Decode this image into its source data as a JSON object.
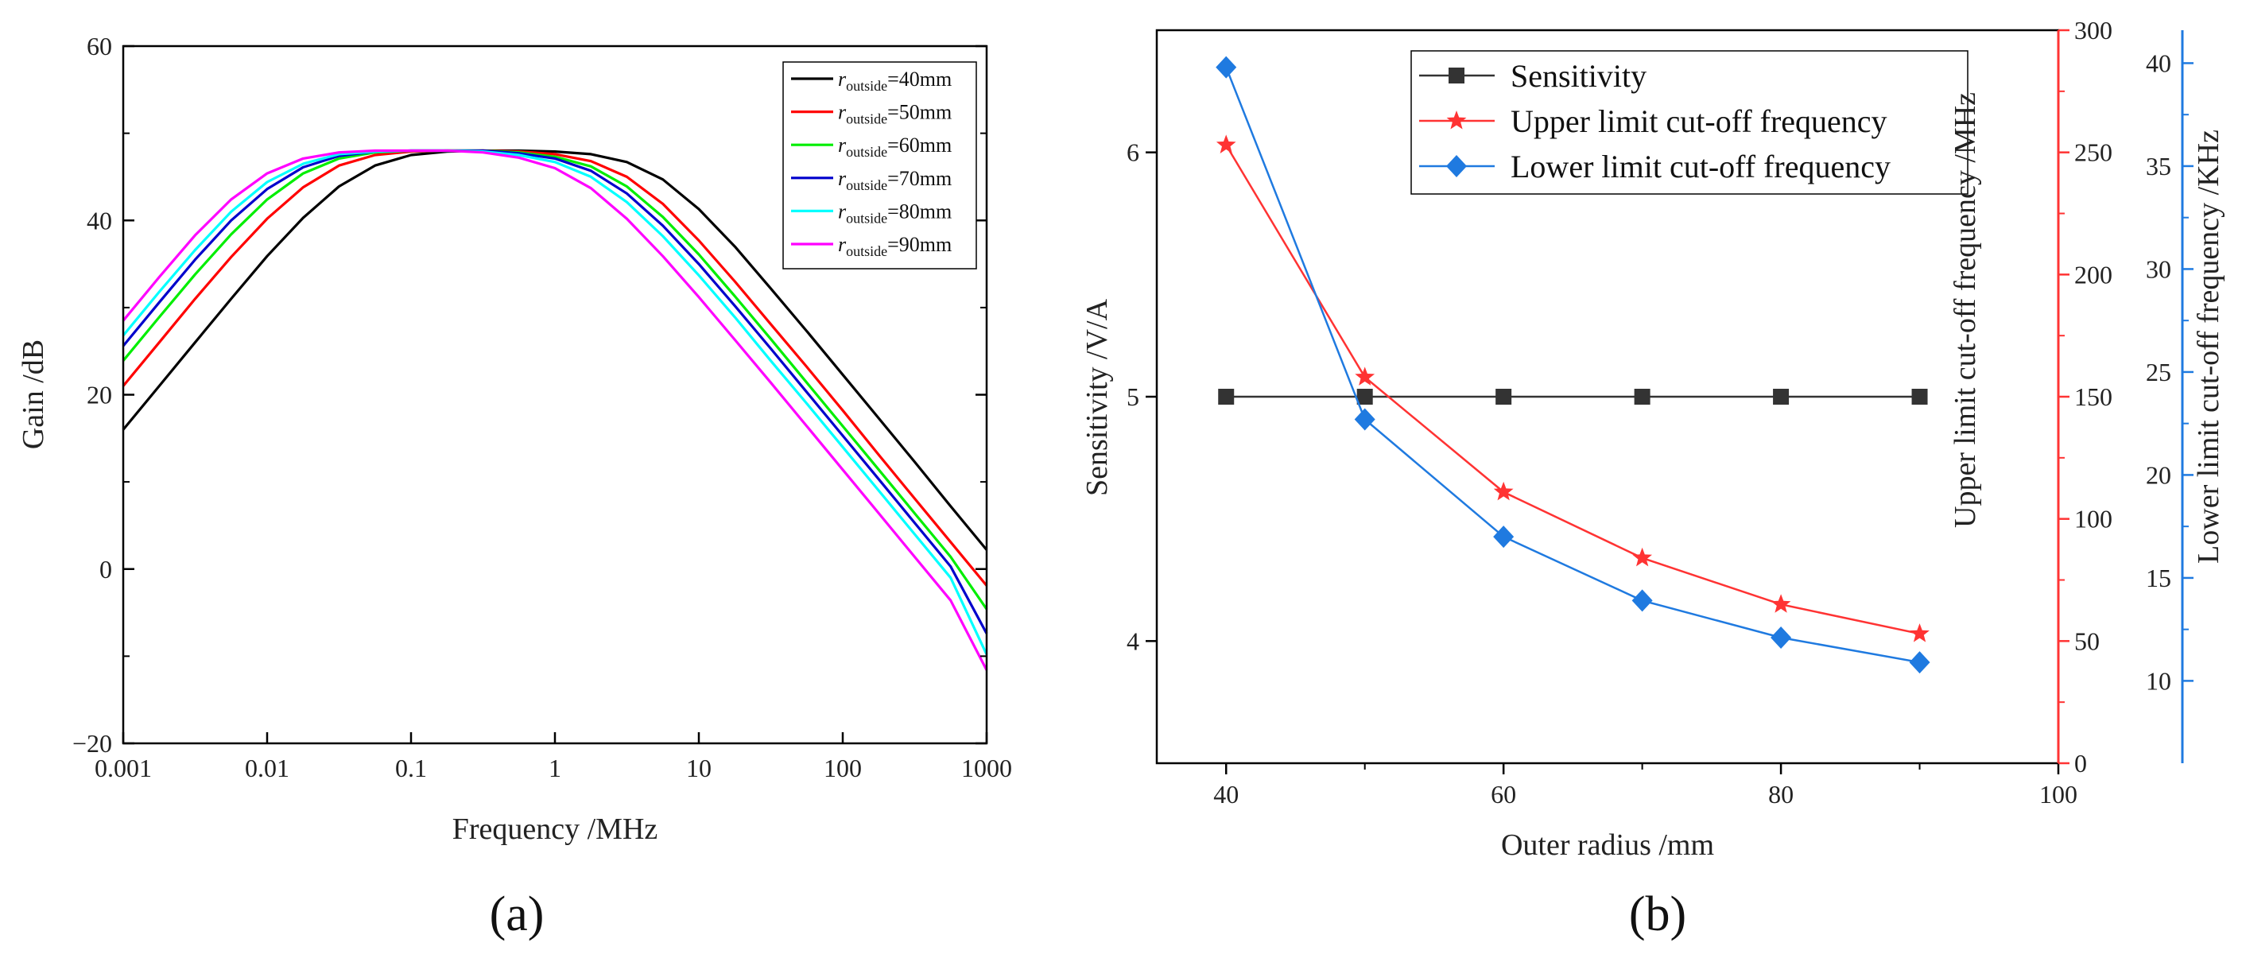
{
  "panel_labels": {
    "a": "(a)",
    "b": "(b)"
  },
  "chart_data": [
    {
      "type": "line",
      "panel": "(a)",
      "xlabel": "Frequency /MHz",
      "ylabel": "Gain /dB",
      "xscale": "log",
      "xlim": [
        0.001,
        1000
      ],
      "ylim": [
        -20,
        60
      ],
      "xticks": [
        0.001,
        0.01,
        0.1,
        1,
        10,
        100,
        1000
      ],
      "xtick_labels": [
        "0.001",
        "0.01",
        "0.1",
        "1",
        "10",
        "100",
        "1000"
      ],
      "yticks": [
        -20,
        0,
        20,
        40,
        60
      ],
      "ytick_labels": [
        "−20",
        "0",
        "20",
        "40",
        "60"
      ],
      "grid": false,
      "legend_position": "top-right",
      "x": [
        0.001,
        0.00178,
        0.00316,
        0.00562,
        0.01,
        0.0178,
        0.0316,
        0.0562,
        0.1,
        0.178,
        0.316,
        0.562,
        1,
        1.78,
        3.16,
        5.62,
        10,
        17.8,
        31.6,
        56.2,
        100,
        178,
        316,
        562,
        1000
      ],
      "series": [
        {
          "label_main": "r",
          "label_sub": "outside",
          "label_tail": "=40mm",
          "color": "#000000",
          "values": [
            16,
            21,
            26,
            31,
            35.9,
            40.3,
            43.9,
            46.3,
            47.5,
            47.9,
            48,
            48,
            47.9,
            47.6,
            46.7,
            44.7,
            41.3,
            37,
            32.2,
            27.3,
            22.3,
            17.3,
            12.3,
            7.2,
            2.2
          ]
        },
        {
          "label_main": "r",
          "label_sub": "outside",
          "label_tail": "=50mm",
          "color": "#ff0000",
          "values": [
            21,
            26,
            31,
            35.8,
            40.2,
            43.8,
            46.3,
            47.5,
            47.9,
            48,
            48,
            47.9,
            47.6,
            46.8,
            45,
            41.9,
            37.7,
            33,
            28.1,
            23.2,
            18.2,
            13.1,
            8.1,
            3.1,
            -1.9
          ]
        },
        {
          "label_main": "r",
          "label_sub": "outside",
          "label_tail": "=60mm",
          "color": "#00ee00",
          "values": [
            23.9,
            28.9,
            33.8,
            38.4,
            42.4,
            45.4,
            47.1,
            47.8,
            48,
            48,
            48,
            47.8,
            47.3,
            46.2,
            43.9,
            40.4,
            36.1,
            31.3,
            26.4,
            21.4,
            16.4,
            11.4,
            6.4,
            1.4,
            -4.6
          ]
        },
        {
          "label_main": "r",
          "label_sub": "outside",
          "label_tail": "=70mm",
          "color": "#0000cc",
          "values": [
            25.6,
            30.6,
            35.5,
            40,
            43.6,
            46.1,
            47.4,
            47.9,
            48,
            48,
            48,
            47.7,
            47.1,
            45.7,
            43.1,
            39.4,
            35,
            30.2,
            25.3,
            20.3,
            15.3,
            10.3,
            5.3,
            0.3,
            -7.4
          ]
        },
        {
          "label_main": "r",
          "label_sub": "outside",
          "label_tail": "=80mm",
          "color": "#00ffff",
          "values": [
            26.8,
            31.8,
            36.6,
            41,
            44.4,
            46.5,
            47.6,
            47.9,
            48,
            48,
            47.9,
            47.5,
            46.7,
            45,
            42.1,
            38.2,
            33.7,
            28.9,
            23.9,
            19,
            14,
            9,
            4,
            -1,
            -9.8
          ]
        },
        {
          "label_main": "r",
          "label_sub": "outside",
          "label_tail": "=90mm",
          "color": "#ff00ff",
          "values": [
            28.5,
            33.5,
            38.3,
            42.4,
            45.4,
            47.1,
            47.8,
            48,
            48,
            48,
            47.8,
            47.2,
            46,
            43.7,
            40.2,
            35.9,
            31.2,
            26.3,
            21.4,
            16.4,
            11.4,
            6.4,
            1.4,
            -3.6,
            -11.6
          ]
        }
      ]
    },
    {
      "type": "line",
      "panel": "(b)",
      "xlabel": "Outer radius /mm",
      "xlim": [
        35,
        100
      ],
      "xticks": [
        40,
        60,
        80,
        100
      ],
      "x": [
        40,
        50,
        60,
        70,
        80,
        90
      ],
      "grid": false,
      "legend_position": "top-center",
      "axes": {
        "left": {
          "label": "Sensitivity /V/A",
          "ylim": [
            3.5,
            6.5
          ],
          "ticks": [
            4,
            5,
            6
          ],
          "color": "#333333"
        },
        "right1": {
          "label": "Upper limit cut-off frequency /MHz",
          "ylim": [
            0,
            300
          ],
          "ticks": [
            0,
            50,
            100,
            150,
            200,
            250,
            300
          ],
          "color": "#ff3333"
        },
        "right2": {
          "label": "Lower limit cut-off frequency /KHz",
          "ylim": [
            6,
            41.6
          ],
          "ticks": [
            10,
            15,
            20,
            25,
            30,
            35,
            40
          ],
          "color": "#1f7ae0"
        }
      },
      "series": [
        {
          "name": "Sensitivity",
          "axis": "left",
          "marker": "square",
          "color": "#333333",
          "values": [
            5,
            5,
            5,
            5,
            5,
            5
          ]
        },
        {
          "name": "Upper limit cut-off frequency",
          "axis": "right1",
          "marker": "star",
          "color": "#ff3333",
          "values": [
            253,
            158,
            111,
            84,
            65,
            53
          ]
        },
        {
          "name": "Lower limit cut-off frequency",
          "axis": "right2",
          "marker": "diamond",
          "color": "#1f7ae0",
          "values": [
            39.8,
            22.7,
            17,
            13.9,
            12.1,
            10.9
          ]
        }
      ]
    }
  ]
}
